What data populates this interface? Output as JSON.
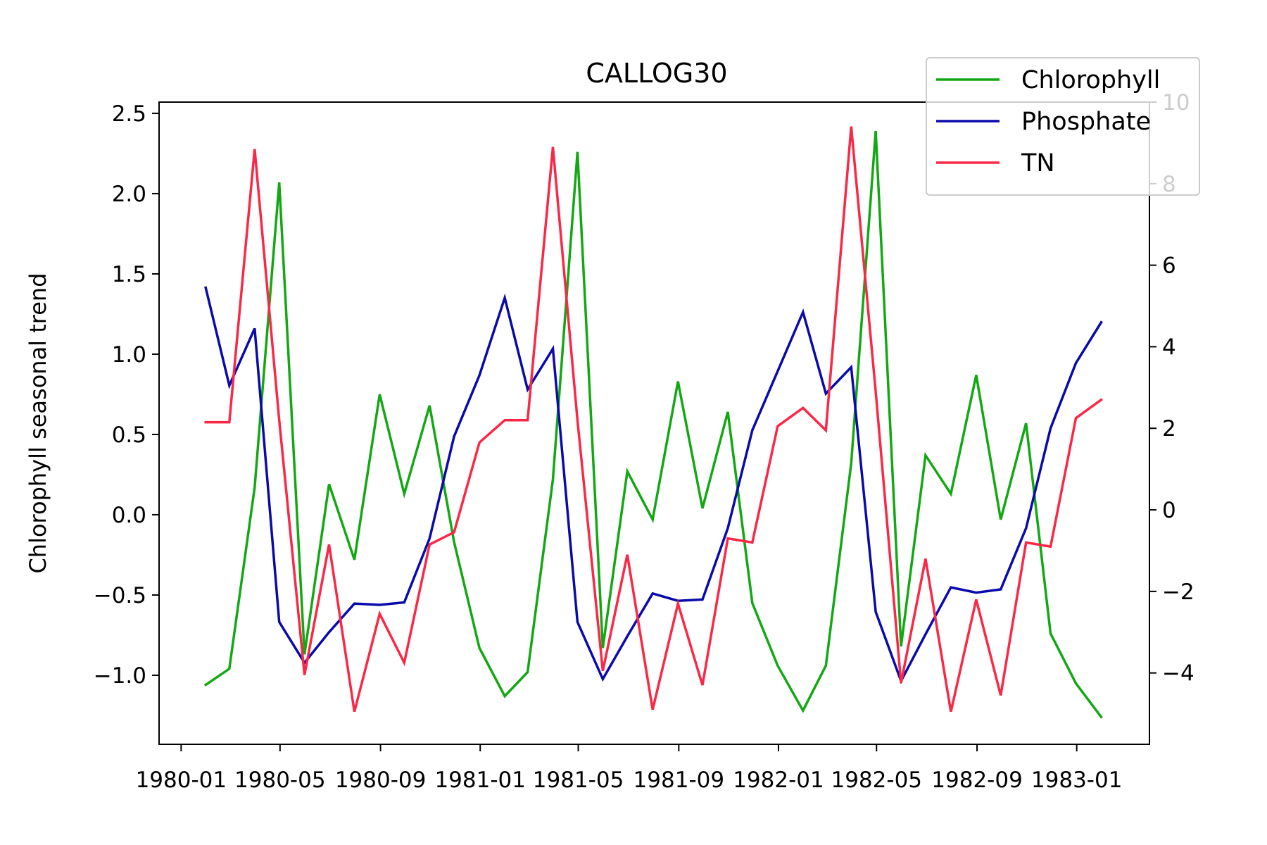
{
  "chart_data": {
    "type": "line",
    "title": "CALLOG30",
    "ylabel": "Chlorophyll seasonal trend",
    "y2label": "",
    "xlabel": "",
    "x_axis": {
      "type": "date",
      "range": [
        "1979-12-05",
        "1983-03-31"
      ],
      "ticks": [
        "1980-01",
        "1980-05",
        "1980-09",
        "1981-01",
        "1981-05",
        "1981-09",
        "1982-01",
        "1982-05",
        "1982-09",
        "1983-01"
      ]
    },
    "y_left": {
      "range": [
        -1.43,
        2.57
      ],
      "ticks": [
        "2.5",
        "2.0",
        "1.5",
        "1.0",
        "0.5",
        "0.0",
        "−0.5",
        "−1.0"
      ],
      "tick_values": [
        2.5,
        2.0,
        1.5,
        1.0,
        0.5,
        0.0,
        -0.5,
        -1.0
      ]
    },
    "y_right": {
      "range": [
        -5.75,
        10.0
      ],
      "ticks": [
        "10",
        "8",
        "6",
        "4",
        "2",
        "0",
        "−2",
        "−4"
      ],
      "tick_values": [
        10,
        8,
        6,
        4,
        2,
        0,
        -2,
        -4
      ]
    },
    "grid": false,
    "legend": "top-right",
    "x": [
      "1980-01-31",
      "1980-02-29",
      "1980-03-31",
      "1980-04-30",
      "1980-05-31",
      "1980-06-30",
      "1980-07-31",
      "1980-08-31",
      "1980-09-30",
      "1980-10-31",
      "1980-11-30",
      "1980-12-31",
      "1981-01-31",
      "1981-02-28",
      "1981-03-31",
      "1981-04-30",
      "1981-05-31",
      "1981-06-30",
      "1981-07-31",
      "1981-08-31",
      "1981-09-30",
      "1981-10-31",
      "1981-11-30",
      "1981-12-31",
      "1982-01-31",
      "1982-02-28",
      "1982-03-31",
      "1982-04-30",
      "1982-05-31",
      "1982-06-30",
      "1982-07-31",
      "1982-08-31",
      "1982-09-30",
      "1982-10-31",
      "1982-11-30",
      "1982-12-31",
      "1983-01-31",
      "1983-02-28"
    ],
    "series": [
      {
        "name": "Chlorophyll",
        "axis": "left",
        "color": "#13a813",
        "values": [
          -1.06,
          -0.96,
          0.17,
          2.07,
          -0.87,
          0.19,
          -0.28,
          0.75,
          0.13,
          0.68,
          -0.17,
          -0.83,
          -1.13,
          -0.98,
          0.22,
          2.26,
          -0.83,
          0.27,
          -0.03,
          0.83,
          0.04,
          0.64,
          -0.55,
          -0.94,
          -1.22,
          -0.94,
          0.32,
          2.39,
          -0.82,
          0.37,
          0.13,
          0.87,
          -0.03,
          0.57,
          -0.74,
          -1.05,
          -1.26,
          null
        ]
      },
      {
        "name": "Phosphate",
        "axis": "right",
        "color": "#0a0aaa",
        "values": [
          5.45,
          3.05,
          4.45,
          -2.75,
          -3.75,
          -3.0,
          -2.3,
          -2.33,
          -2.27,
          -0.7,
          1.8,
          3.3,
          5.2,
          2.95,
          3.95,
          -2.75,
          -4.15,
          -3.1,
          -2.05,
          -2.23,
          -2.2,
          -0.45,
          1.95,
          3.4,
          4.85,
          2.85,
          3.5,
          -2.5,
          -4.2,
          -3.05,
          -1.9,
          -2.03,
          -1.95,
          -0.45,
          2.0,
          3.6,
          4.6,
          null
        ]
      },
      {
        "name": "TN",
        "axis": "right",
        "color": "#fa2846",
        "values": [
          2.15,
          2.15,
          8.85,
          2.2,
          -4.05,
          -0.85,
          -4.95,
          -2.55,
          -3.75,
          -0.85,
          -0.55,
          1.65,
          2.2,
          2.2,
          8.9,
          2.2,
          -3.95,
          -1.1,
          -4.9,
          -2.3,
          -4.3,
          -0.7,
          -0.8,
          2.05,
          2.5,
          1.95,
          9.4,
          2.9,
          -4.25,
          -1.2,
          -4.95,
          -2.2,
          -4.55,
          -0.8,
          -0.9,
          2.25,
          2.7,
          null
        ]
      }
    ]
  }
}
